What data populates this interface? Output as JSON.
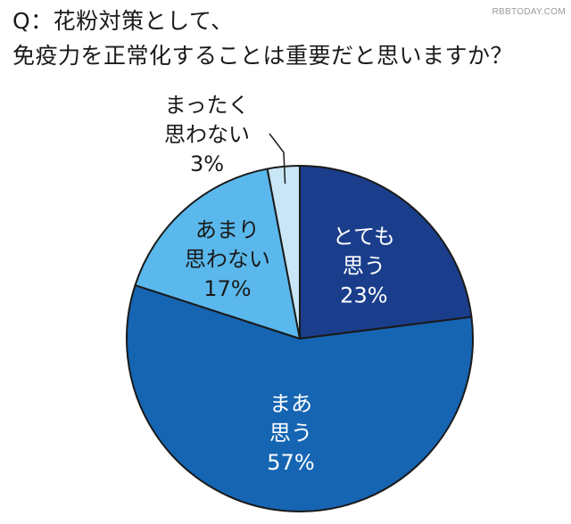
{
  "title": {
    "line1": "Q：花粉対策として、",
    "line2": "免疫力を正常化することは重要だと思いますか？"
  },
  "watermark": "RBBTODAY.COM",
  "chart_data": {
    "type": "pie",
    "title": "Q：花粉対策として、免疫力を正常化することは重要だと思いますか？",
    "start": "12 o'clock",
    "direction": "clockwise",
    "slices": [
      {
        "label_lines": [
          "とても",
          "思う"
        ],
        "value": 23,
        "value_text": "23%",
        "color": "#1a3e8c",
        "label_color": "#ffffff"
      },
      {
        "label_lines": [
          "まあ",
          "思う"
        ],
        "value": 57,
        "value_text": "57%",
        "color": "#1565b3",
        "label_color": "#ffffff"
      },
      {
        "label_lines": [
          "あまり",
          "思わない"
        ],
        "value": 17,
        "value_text": "17%",
        "color": "#5ab8ec",
        "label_color": "#1a1a1a"
      },
      {
        "label_lines": [
          "まったく",
          "思わない"
        ],
        "value": 3,
        "value_text": "3%",
        "color": "#c9e6f7",
        "label_color": "#1a1a1a"
      }
    ]
  }
}
